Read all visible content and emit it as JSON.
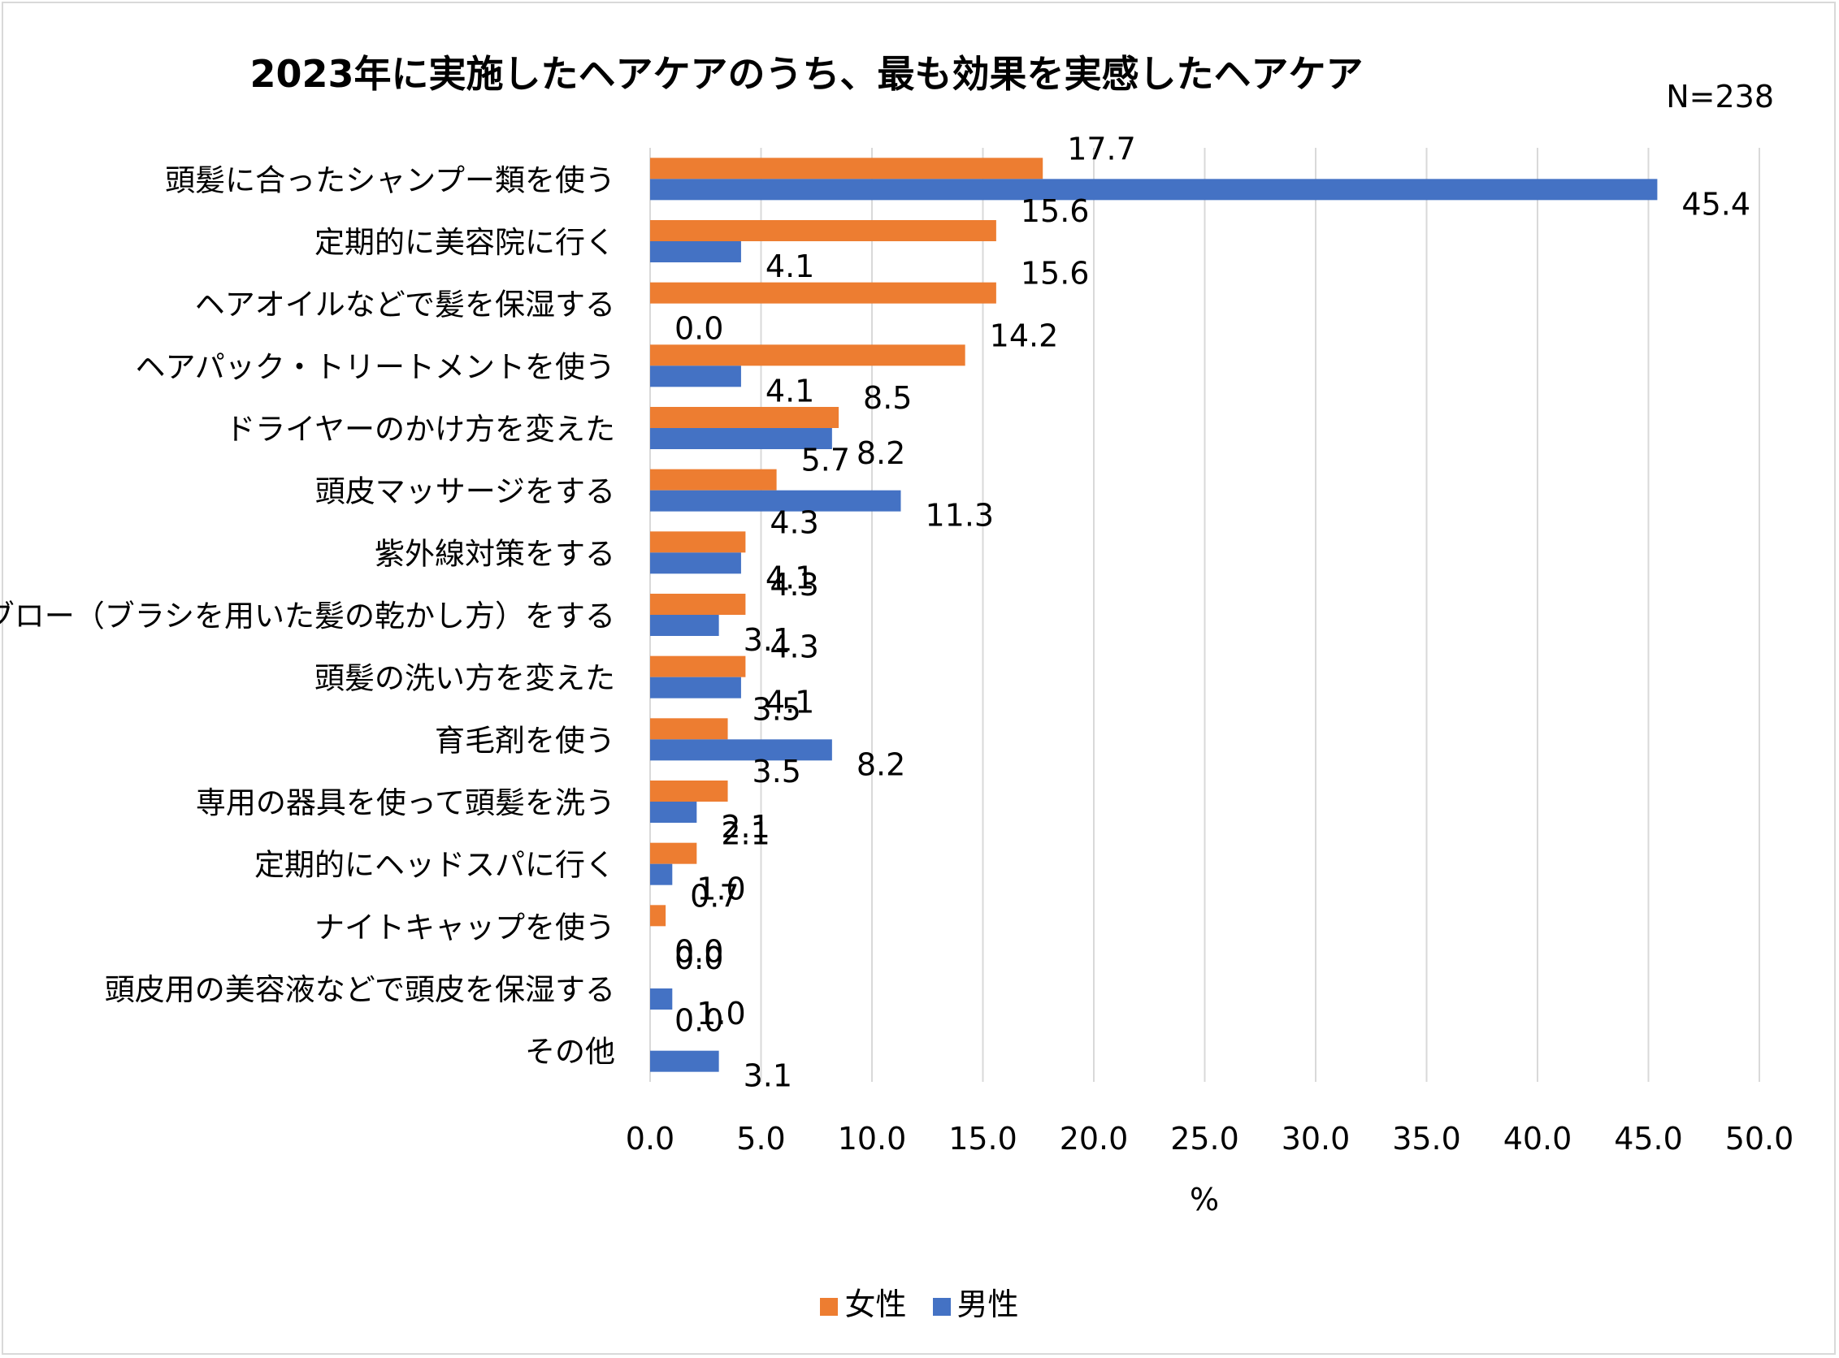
{
  "chart_data": {
    "type": "bar",
    "orientation": "horizontal",
    "title": "2023年に実施したヘアケアのうち、最も効果を実感したヘアケア",
    "annotation": "N=238",
    "xlabel": "%",
    "xlim": [
      0,
      50
    ],
    "xticks": [
      "0.0",
      "5.0",
      "10.0",
      "15.0",
      "20.0",
      "25.0",
      "30.0",
      "35.0",
      "40.0",
      "45.0",
      "50.0"
    ],
    "grid": true,
    "legend_position": "bottom",
    "categories": [
      "頭髪に合ったシャンプー類を使う",
      "定期的に美容院に行く",
      "ヘアオイルなどで髪を保湿する",
      "ヘアパック・トリートメントを使う",
      "ドライヤーのかけ方を変えた",
      "頭皮マッサージをする",
      "紫外線対策をする",
      "ブロー（ブラシを用いた髪の乾かし方）をする",
      "頭髪の洗い方を変えた",
      "育毛剤を使う",
      "専用の器具を使って頭髪を洗う",
      "定期的にヘッドスパに行く",
      "ナイトキャップを使う",
      "頭皮用の美容液などで頭皮を保湿する",
      "その他"
    ],
    "series": [
      {
        "name": "女性",
        "color": "#ED7D31",
        "values": [
          17.7,
          15.6,
          15.6,
          14.2,
          8.5,
          5.7,
          4.3,
          4.3,
          4.3,
          3.5,
          3.5,
          2.1,
          0.7,
          0.0,
          0.0
        ]
      },
      {
        "name": "男性",
        "color": "#4472C4",
        "values": [
          45.4,
          4.1,
          0.0,
          4.1,
          8.2,
          11.3,
          4.1,
          3.1,
          4.1,
          8.2,
          2.1,
          1.0,
          0.0,
          1.0,
          3.1
        ]
      }
    ]
  }
}
